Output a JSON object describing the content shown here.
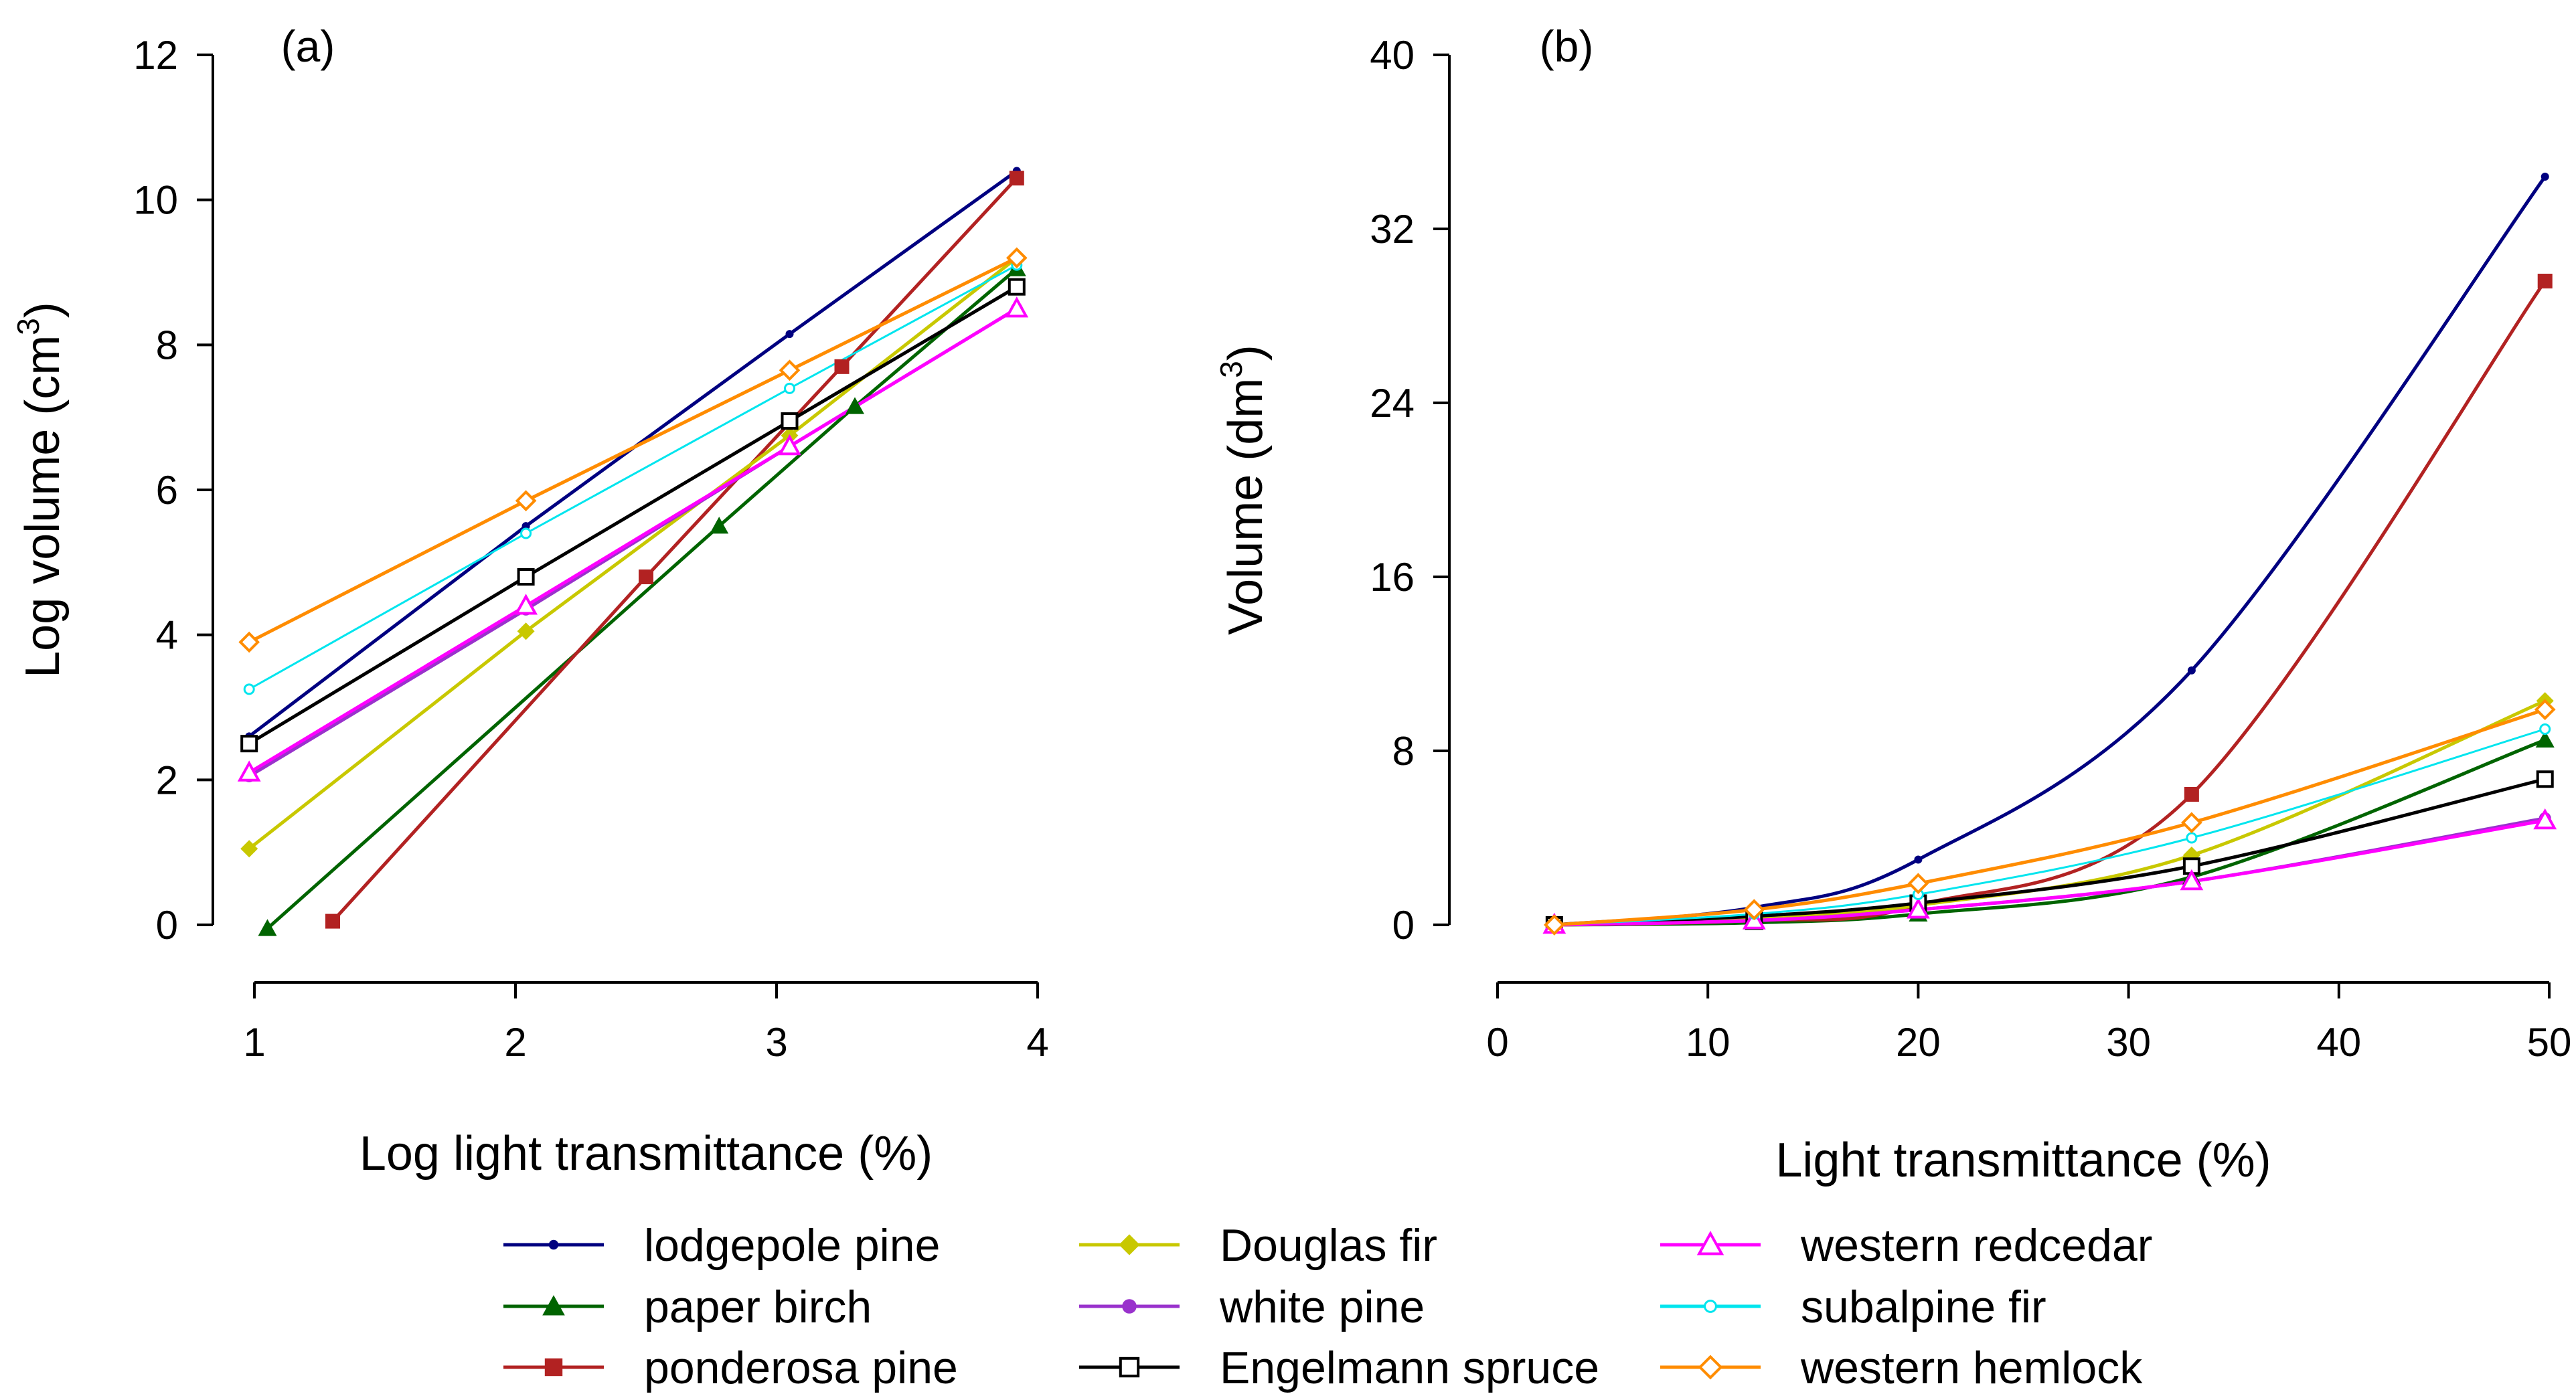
{
  "chart_data": [
    {
      "type": "line",
      "panel_label": "(a)",
      "xlabel": "Log light transmittance (%)",
      "ylabel": "Log volume (cm",
      "ylabel_sup": "3",
      "ylabel_close": ")",
      "xlim": [
        1,
        4
      ],
      "ylim": [
        0,
        12
      ],
      "xticks": [
        1,
        2,
        3,
        4
      ],
      "yticks": [
        0,
        2,
        4,
        6,
        8,
        10,
        12
      ],
      "grid": false,
      "series": [
        {
          "name": "lodgepole pine",
          "x": [
            0.98,
            2.04,
            3.05,
            3.92
          ],
          "values": [
            2.6,
            5.5,
            8.15,
            10.4
          ]
        },
        {
          "name": "paper birch",
          "x": [
            1.05,
            2.78,
            3.3,
            3.92
          ],
          "values": [
            -0.05,
            5.5,
            7.15,
            9.05
          ]
        },
        {
          "name": "ponderosa pine",
          "x": [
            1.3,
            2.5,
            3.25,
            3.92
          ],
          "values": [
            0.05,
            4.8,
            7.7,
            10.3
          ]
        },
        {
          "name": "Douglas fir",
          "x": [
            0.98,
            2.04,
            3.05,
            3.92
          ],
          "values": [
            1.05,
            4.05,
            6.75,
            9.2
          ]
        },
        {
          "name": "white pine",
          "x": [
            0.98,
            2.04,
            3.05,
            3.92
          ],
          "values": [
            2.05,
            4.35,
            6.6,
            8.5
          ]
        },
        {
          "name": "Engelmann spruce",
          "x": [
            0.98,
            2.04,
            3.05,
            3.92
          ],
          "values": [
            2.5,
            4.8,
            6.95,
            8.8
          ]
        },
        {
          "name": "western redcedar",
          "x": [
            0.98,
            2.04,
            3.05,
            3.92
          ],
          "values": [
            2.1,
            4.4,
            6.6,
            8.5
          ]
        },
        {
          "name": "subalpine fir",
          "x": [
            0.98,
            2.04,
            3.05,
            3.92
          ],
          "values": [
            3.25,
            5.4,
            7.4,
            9.1
          ]
        },
        {
          "name": "western hemlock",
          "x": [
            0.98,
            2.04,
            3.05,
            3.92
          ],
          "values": [
            3.9,
            5.85,
            7.65,
            9.2
          ]
        }
      ]
    },
    {
      "type": "line",
      "panel_label": "(b)",
      "xlabel": "Light transmittance (%)",
      "ylabel": "Volume (dm",
      "ylabel_sup": "3",
      "ylabel_close": ")",
      "xlim": [
        0,
        50
      ],
      "ylim": [
        0,
        40
      ],
      "xticks": [
        0,
        10,
        20,
        30,
        40,
        50
      ],
      "yticks": [
        0,
        8,
        16,
        24,
        32,
        40
      ],
      "grid": false,
      "series": [
        {
          "name": "lodgepole pine",
          "x": [
            2.7,
            12.2,
            20,
            33,
            49.8
          ],
          "values": [
            0.0,
            0.8,
            3.0,
            11.7,
            34.4
          ]
        },
        {
          "name": "paper birch",
          "x": [
            2.7,
            12.2,
            20,
            33,
            49.8
          ],
          "values": [
            0.0,
            0.1,
            0.5,
            2.2,
            8.5
          ]
        },
        {
          "name": "ponderosa pine",
          "x": [
            2.7,
            12.2,
            20,
            33,
            49.8
          ],
          "values": [
            0.0,
            0.2,
            0.9,
            6.0,
            29.6
          ]
        },
        {
          "name": "Douglas fir",
          "x": [
            2.7,
            12.2,
            20,
            33,
            49.8
          ],
          "values": [
            0.0,
            0.3,
            0.9,
            3.2,
            10.3
          ]
        },
        {
          "name": "white pine",
          "x": [
            2.7,
            12.2,
            20,
            33,
            49.8
          ],
          "values": [
            0.0,
            0.2,
            0.7,
            2.0,
            4.9
          ]
        },
        {
          "name": "Engelmann spruce",
          "x": [
            2.7,
            12.2,
            20,
            33,
            49.8
          ],
          "values": [
            0.0,
            0.4,
            1.0,
            2.7,
            6.7
          ]
        },
        {
          "name": "western redcedar",
          "x": [
            2.7,
            12.2,
            20,
            33,
            49.8
          ],
          "values": [
            0.0,
            0.2,
            0.7,
            2.0,
            4.8
          ]
        },
        {
          "name": "subalpine fir",
          "x": [
            2.7,
            12.2,
            20,
            33,
            49.8
          ],
          "values": [
            0.0,
            0.5,
            1.4,
            4.0,
            9.0
          ]
        },
        {
          "name": "western hemlock",
          "x": [
            2.7,
            12.2,
            20,
            33,
            49.8
          ],
          "values": [
            0.0,
            0.7,
            1.9,
            4.7,
            9.9
          ]
        }
      ]
    }
  ],
  "legend": {
    "placement": "bottom",
    "entries": [
      {
        "name": "lodgepole pine",
        "color": "#000080",
        "marker": "dot"
      },
      {
        "name": "paper birch",
        "color": "#006400",
        "marker": "triangle-filled"
      },
      {
        "name": "ponderosa pine",
        "color": "#B22222",
        "marker": "square-filled"
      },
      {
        "name": "Douglas fir",
        "color": "#C8C800",
        "marker": "diamond-filled"
      },
      {
        "name": "white pine",
        "color": "#9932CC",
        "marker": "circle-filled"
      },
      {
        "name": "Engelmann spruce",
        "color": "#000000",
        "marker": "square-open"
      },
      {
        "name": "western redcedar",
        "color": "#FF00FF",
        "marker": "triangle-open"
      },
      {
        "name": "subalpine fir",
        "color": "#00E5EE",
        "marker": "circle-open-small"
      },
      {
        "name": "western hemlock",
        "color": "#FF8C00",
        "marker": "diamond-open"
      }
    ]
  }
}
